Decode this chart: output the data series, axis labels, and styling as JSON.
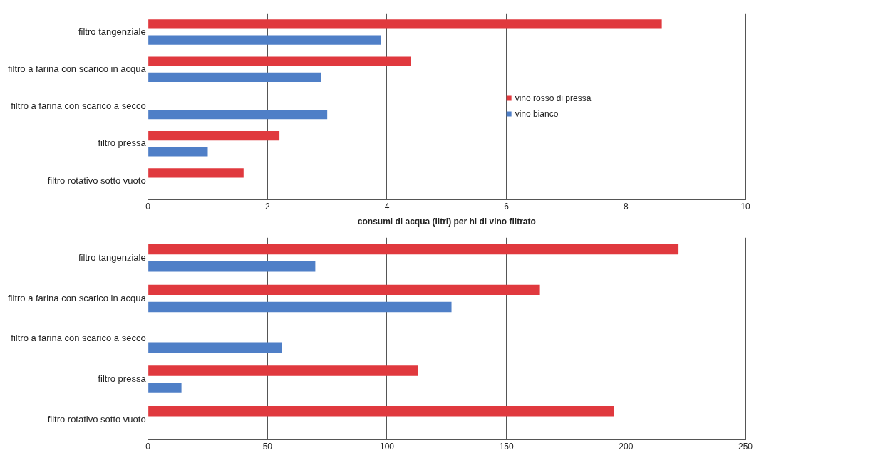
{
  "chart_data": [
    {
      "type": "bar",
      "orientation": "horizontal",
      "categories": [
        "filtro tangenziale",
        "filtro a farina con scarico in acqua",
        "filtro a farina con scarico a secco",
        "filtro pressa",
        "filtro rotativo sotto vuoto"
      ],
      "series": [
        {
          "name": "vino rosso di pressa",
          "color": "#e0393e",
          "values": [
            8.6,
            4.4,
            null,
            2.2,
            1.6
          ]
        },
        {
          "name": "vino bianco",
          "color": "#4f7fc7",
          "values": [
            3.9,
            2.9,
            3.0,
            1.0,
            null
          ]
        }
      ],
      "xlim": [
        0,
        10
      ],
      "xticks": [
        0,
        2,
        4,
        6,
        8,
        10
      ],
      "xlabel": "consumi di acqua (litri) per hl di vino filtrato",
      "grid": "x",
      "legend": "right"
    },
    {
      "type": "bar",
      "orientation": "horizontal",
      "categories": [
        "filtro tangenziale",
        "filtro a farina con scarico in acqua",
        "filtro a farina con scarico a secco",
        "filtro pressa",
        "filtro rotativo sotto vuoto"
      ],
      "series": [
        {
          "color": "#e0393e",
          "values": [
            222,
            164,
            null,
            113,
            195
          ]
        },
        {
          "color": "#4f7fc7",
          "values": [
            70,
            127,
            56,
            14,
            null
          ]
        }
      ],
      "xlim": [
        0,
        250
      ],
      "xticks": [
        0,
        50,
        100,
        150,
        200,
        250
      ],
      "grid": "x",
      "legend": false
    }
  ]
}
